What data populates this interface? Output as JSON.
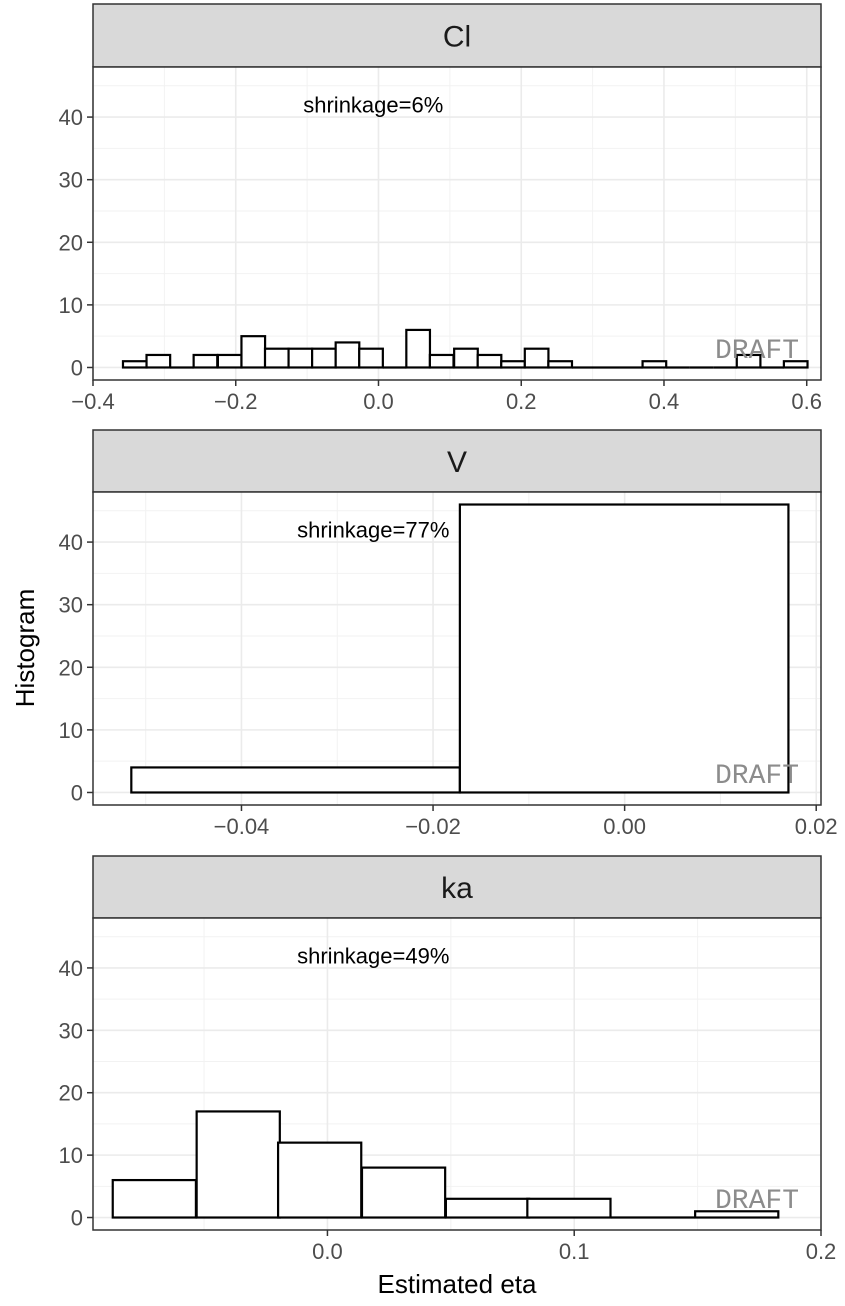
{
  "chart_data": {
    "type": "bar",
    "ylabel": "Histogram",
    "xlabel": "Estimated eta",
    "ylim": [
      -2,
      48
    ],
    "y_ticks": [
      0,
      10,
      20,
      30,
      40
    ],
    "y_tick_labels": [
      "0",
      "10",
      "20",
      "30",
      "40"
    ],
    "watermark": "DRAFT",
    "grid": true,
    "panels": [
      {
        "title": "Cl",
        "annotation": "shrinkage=6%",
        "xlim": [
          -0.4,
          0.62
        ],
        "x_ticks": [
          -0.4,
          -0.2,
          0.0,
          0.2,
          0.4,
          0.6
        ],
        "x_tick_labels": [
          "−0.4",
          "−0.2",
          "0.0",
          "0.2",
          "0.4",
          "0.6"
        ],
        "bin_width": 0.0331,
        "bins": [
          {
            "x": -0.358,
            "count": 1
          },
          {
            "x": -0.325,
            "count": 2
          },
          {
            "x": -0.292,
            "count": 0
          },
          {
            "x": -0.259,
            "count": 2
          },
          {
            "x": -0.225,
            "count": 2
          },
          {
            "x": -0.192,
            "count": 5
          },
          {
            "x": -0.159,
            "count": 3
          },
          {
            "x": -0.126,
            "count": 3
          },
          {
            "x": -0.093,
            "count": 3
          },
          {
            "x": -0.06,
            "count": 4
          },
          {
            "x": -0.027,
            "count": 3
          },
          {
            "x": 0.006,
            "count": 0
          },
          {
            "x": 0.039,
            "count": 6
          },
          {
            "x": 0.072,
            "count": 2
          },
          {
            "x": 0.106,
            "count": 3
          },
          {
            "x": 0.139,
            "count": 2
          },
          {
            "x": 0.172,
            "count": 1
          },
          {
            "x": 0.205,
            "count": 3
          },
          {
            "x": 0.238,
            "count": 1
          },
          {
            "x": 0.271,
            "count": 0
          },
          {
            "x": 0.304,
            "count": 0
          },
          {
            "x": 0.337,
            "count": 0
          },
          {
            "x": 0.37,
            "count": 1
          },
          {
            "x": 0.403,
            "count": 0
          },
          {
            "x": 0.436,
            "count": 0
          },
          {
            "x": 0.469,
            "count": 0
          },
          {
            "x": 0.502,
            "count": 2
          },
          {
            "x": 0.535,
            "count": 0
          },
          {
            "x": 0.568,
            "count": 1
          }
        ]
      },
      {
        "title": "V",
        "annotation": "shrinkage=77%",
        "xlim": [
          -0.0555,
          0.0205
        ],
        "x_ticks": [
          -0.04,
          -0.02,
          0.0,
          0.02
        ],
        "x_tick_labels": [
          "−0.04",
          "−0.02",
          "0.00",
          "0.02"
        ],
        "bin_width": 0.0343,
        "bins": [
          {
            "x": -0.0515,
            "count": 4
          },
          {
            "x": -0.0172,
            "count": 46
          }
        ]
      },
      {
        "title": "ka",
        "annotation": "shrinkage=49%",
        "xlim": [
          -0.095,
          0.2
        ],
        "x_ticks": [
          0.0,
          0.1,
          0.2
        ],
        "x_tick_labels": [
          "0.0",
          "0.1",
          "0.2"
        ],
        "bin_width": 0.0337,
        "bins": [
          {
            "x": -0.087,
            "count": 6
          },
          {
            "x": -0.053,
            "count": 17
          },
          {
            "x": -0.02,
            "count": 12
          },
          {
            "x": 0.014,
            "count": 8
          },
          {
            "x": 0.048,
            "count": 3
          },
          {
            "x": 0.081,
            "count": 3
          },
          {
            "x": 0.115,
            "count": 0
          },
          {
            "x": 0.149,
            "count": 1
          }
        ]
      }
    ]
  }
}
